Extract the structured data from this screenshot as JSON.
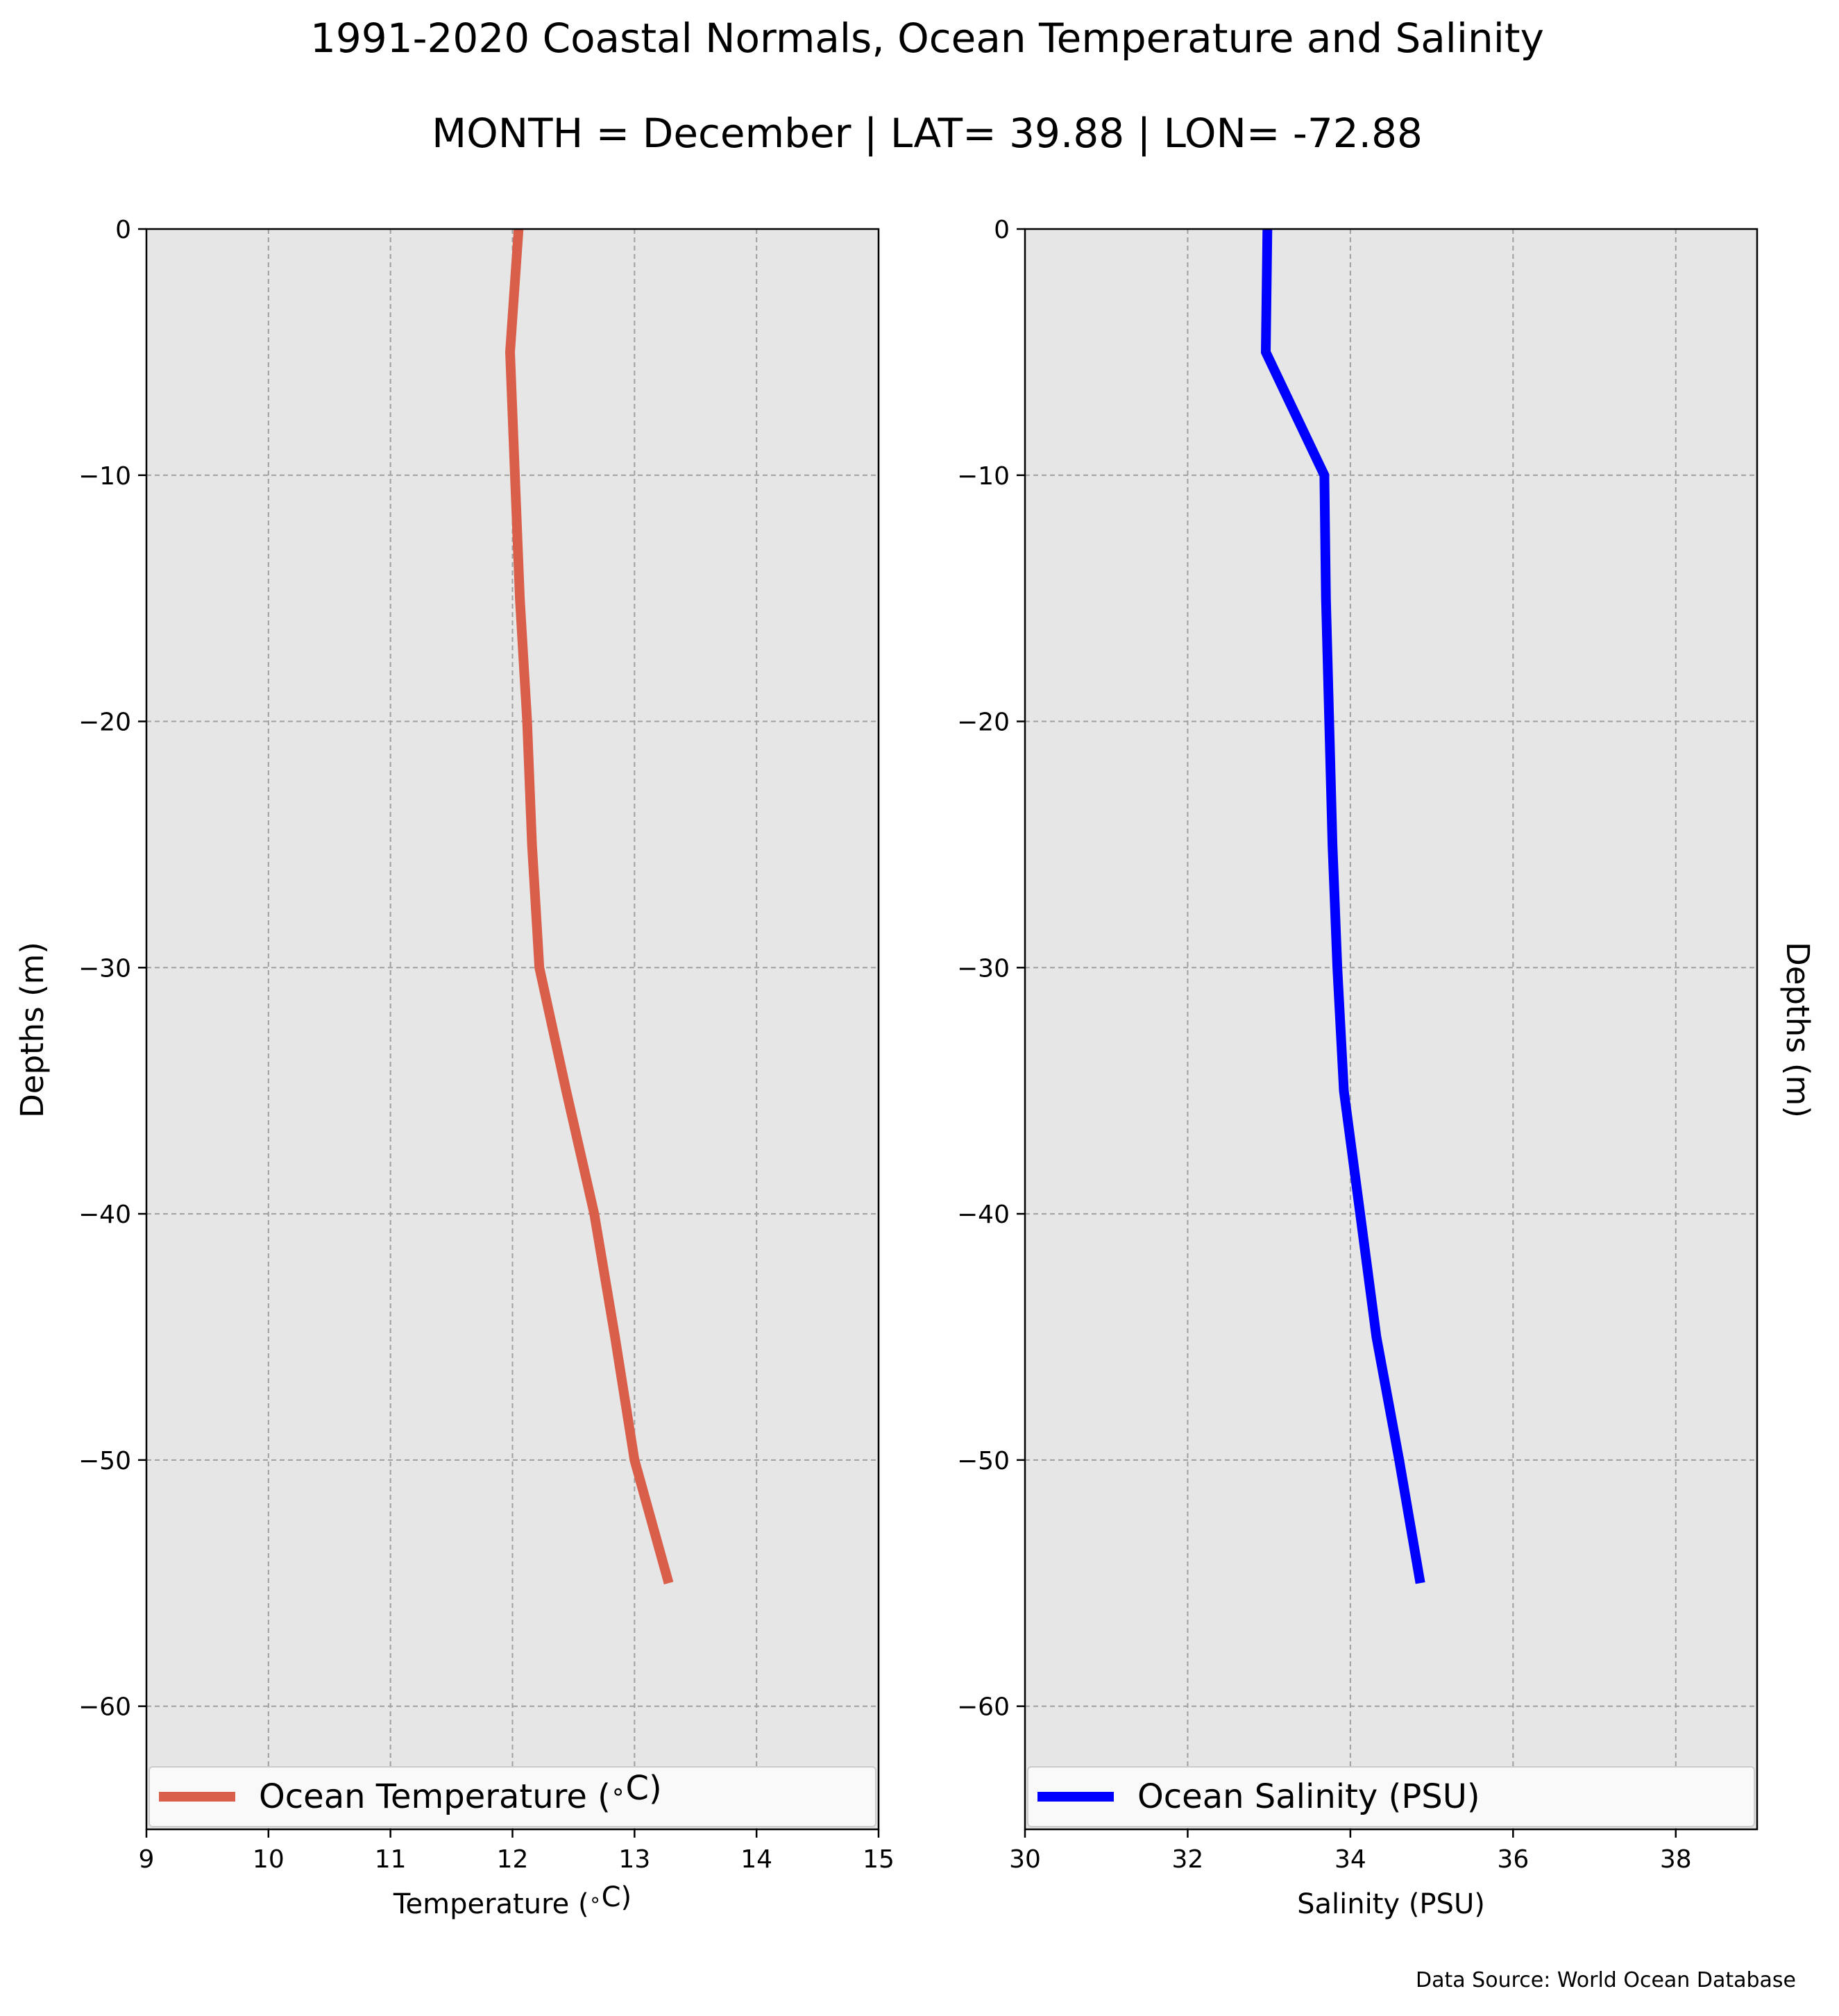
{
  "title": "1991-2020 Coastal Normals, Ocean Temperature and Salinity",
  "subtitle": "MONTH = December | LAT= 39.88 | LON= -72.88",
  "source": "Data Source: World Ocean Database",
  "colors": {
    "background": "#ffffff",
    "plot_bg": "#e6e6e6",
    "grid": "#a0a0a0",
    "temperature": "#d95f4b",
    "salinity": "#0000ff"
  },
  "chart_data": [
    {
      "type": "line",
      "xlabel": "Temperature ($^\\circ$C)",
      "ylabel": "Depths (m)",
      "xlim": [
        9,
        15
      ],
      "ylim": [
        -65,
        0
      ],
      "xticks": [
        9,
        10,
        11,
        12,
        13,
        14,
        15
      ],
      "xtick_labels": [
        "9",
        "10",
        "11",
        "12",
        "13",
        "14",
        "15"
      ],
      "yticks": [
        0,
        -10,
        -20,
        -30,
        -40,
        -50,
        -60
      ],
      "ytick_labels": [
        "0",
        "−10",
        "−20",
        "−30",
        "−40",
        "−50",
        "−60"
      ],
      "grid": true,
      "legend_position": "bottom",
      "series": [
        {
          "name": "Ocean Temperature ($^\\circ$C)",
          "x": [
            12.05,
            11.98,
            12.02,
            12.06,
            12.12,
            12.16,
            12.22,
            12.44,
            12.67,
            12.84,
            13.0,
            13.28
          ],
          "y": [
            0,
            -5,
            -10,
            -15,
            -20,
            -25,
            -30,
            -35,
            -40,
            -45,
            -50,
            -55
          ]
        }
      ]
    },
    {
      "type": "line",
      "xlabel": "Salinity (PSU)",
      "ylabel": "Depths (m)",
      "xlim": [
        30,
        39
      ],
      "ylim": [
        -65,
        0
      ],
      "xticks": [
        30,
        32,
        34,
        36,
        38
      ],
      "xtick_labels": [
        "30",
        "32",
        "34",
        "36",
        "38"
      ],
      "yticks": [
        0,
        -10,
        -20,
        -30,
        -40,
        -50,
        -60
      ],
      "ytick_labels": [
        "0",
        "−10",
        "−20",
        "−30",
        "−40",
        "−50",
        "−60"
      ],
      "grid": true,
      "legend_position": "bottom",
      "series": [
        {
          "name": "Ocean Salinity (PSU)",
          "x": [
            32.98,
            32.96,
            33.68,
            33.7,
            33.74,
            33.78,
            33.84,
            33.92,
            34.12,
            34.32,
            34.6,
            34.86
          ],
          "y": [
            0,
            -5,
            -10,
            -15,
            -20,
            -25,
            -30,
            -35,
            -40,
            -45,
            -50,
            -55
          ]
        }
      ]
    }
  ]
}
